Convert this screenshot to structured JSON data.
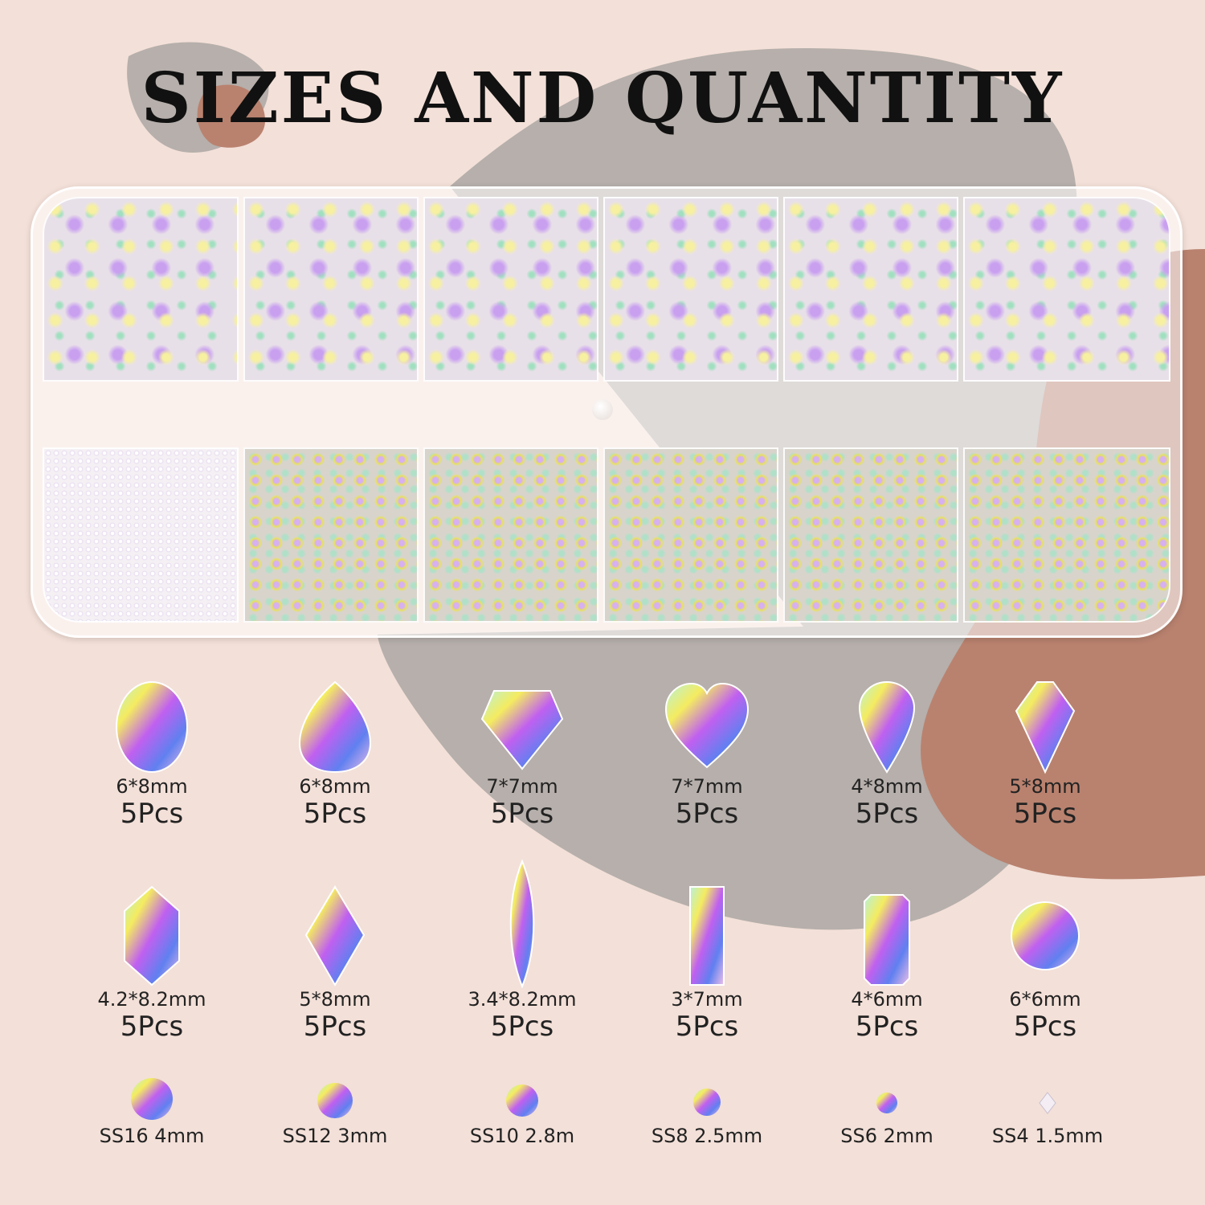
{
  "title": "SIZES AND QUANTITY",
  "colors": {
    "background": "#f3e0d8",
    "grey_blob": "#b6afab",
    "brown_blob": "#b9826f",
    "text": "#111111"
  },
  "shaped_row1": [
    {
      "shape": "oval",
      "size": "6*8mm",
      "qty": "5Pcs"
    },
    {
      "shape": "teardrop",
      "size": "6*8mm",
      "qty": "5Pcs"
    },
    {
      "shape": "kite-diamond",
      "size": "7*7mm",
      "qty": "5Pcs"
    },
    {
      "shape": "heart",
      "size": "7*7mm",
      "qty": "5Pcs"
    },
    {
      "shape": "drop",
      "size": "4*8mm",
      "qty": "5Pcs"
    },
    {
      "shape": "kite",
      "size": "5*8mm",
      "qty": "5Pcs"
    }
  ],
  "shaped_row2": [
    {
      "shape": "hexagon",
      "size": "4.2*8.2mm",
      "qty": "5Pcs"
    },
    {
      "shape": "rhombus",
      "size": "5*8mm",
      "qty": "5Pcs"
    },
    {
      "shape": "marquise",
      "size": "3.4*8.2mm",
      "qty": "5Pcs"
    },
    {
      "shape": "baguette",
      "size": "3*7mm",
      "qty": "5Pcs"
    },
    {
      "shape": "octagon",
      "size": "4*6mm",
      "qty": "5Pcs"
    },
    {
      "shape": "round",
      "size": "6*6mm",
      "qty": "5Pcs"
    }
  ],
  "round_sizes": [
    "SS16 4mm",
    "SS12 3mm",
    "SS10 2.8m",
    "SS8 2.5mm",
    "SS6 2mm",
    "SS4 1.5mm"
  ]
}
